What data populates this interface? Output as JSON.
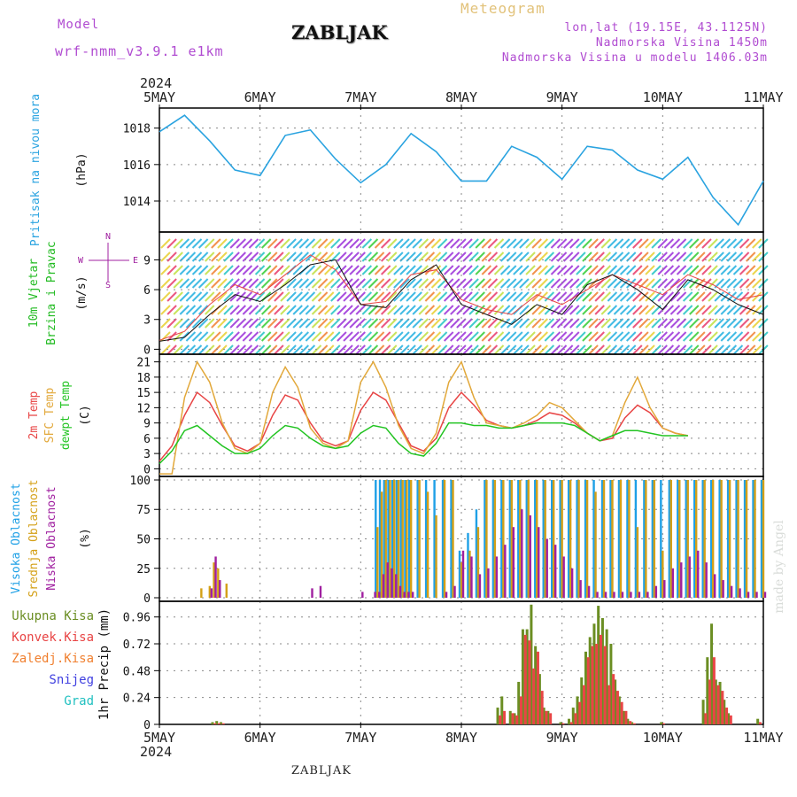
{
  "header": {
    "model_label": "Model",
    "model_name": "wrf-nmm_v3.9.1 e1km",
    "station": "ZABLJAK",
    "product": "Meteogram",
    "coords": "lon,lat (19.15E, 43.1125N)",
    "altitude": "Nadmorska Visina 1450m",
    "model_altitude": "Nadmorska Visina u modelu 1406.03m",
    "year": "2024",
    "footer_station": "ZABLJAK",
    "watermark": "made by Angel"
  },
  "colors": {
    "pressure": "#2aa3e0",
    "wind_label": "#22bb22",
    "temp2m": "#e84545",
    "sfc": "#e2a83a",
    "dewpt": "#22c422",
    "cloud_high": "#1ea0e6",
    "cloud_mid": "#d4a017",
    "cloud_low": "#a020a0",
    "precip_total": "#6b8e23",
    "precip_conv": "#e84545",
    "precip_strat": "#f08030",
    "snow": "#4040e0",
    "hail": "#20c0c0"
  },
  "chart_data": [
    {
      "type": "line",
      "name": "pressure",
      "ylabel": "Pritisak na nivou mora",
      "unit": "(hPa)",
      "ylim": [
        1012.3,
        1019.1
      ],
      "yticks": [
        1014,
        1016,
        1018
      ],
      "x_labels": [
        "5MAY",
        "6MAY",
        "7MAY",
        "8MAY",
        "9MAY",
        "10MAY",
        "11MAY"
      ],
      "x_hours": [
        0,
        6,
        12,
        18,
        24,
        30,
        36,
        42,
        48,
        54,
        60,
        66,
        72,
        78,
        84,
        90,
        96,
        102,
        108,
        114,
        120,
        126,
        132,
        138,
        144
      ],
      "values": [
        1017.8,
        1018.7,
        1017.3,
        1015.7,
        1015.4,
        1017.6,
        1017.9,
        1016.3,
        1015.0,
        1016.0,
        1017.7,
        1016.7,
        1015.1,
        1015.1,
        1017.0,
        1016.4,
        1015.2,
        1017.0,
        1016.8,
        1015.7,
        1015.2,
        1016.4,
        1014.2,
        1012.7,
        1015.1
      ],
      "grid": true
    },
    {
      "type": "line",
      "name": "wind",
      "ylabel": "10m Vjetar Brzina i Pravac",
      "unit": "(m/s)",
      "ylim": [
        -0.5,
        11.8
      ],
      "yticks": [
        0,
        3,
        6,
        9
      ],
      "compass": [
        "N",
        "W",
        "E",
        "S"
      ],
      "x_hours": [
        0,
        6,
        12,
        18,
        24,
        30,
        36,
        42,
        48,
        54,
        60,
        66,
        72,
        78,
        84,
        90,
        96,
        102,
        108,
        114,
        120,
        126,
        132,
        138,
        144
      ],
      "values": [
        0.8,
        1.2,
        3.5,
        5.5,
        4.8,
        6.5,
        8.5,
        9.0,
        4.5,
        4.2,
        7.0,
        8.5,
        4.5,
        3.5,
        2.5,
        4.5,
        3.5,
        6.5,
        7.5,
        6.0,
        4.0,
        7.0,
        6.0,
        4.5,
        3.5
      ],
      "gust": [
        0.9,
        1.8,
        4.5,
        6.5,
        5.5,
        7.5,
        9.5,
        8.0,
        4.5,
        4.8,
        7.5,
        8.0,
        5.0,
        4.0,
        3.5,
        5.5,
        4.5,
        6.0,
        7.5,
        6.5,
        5.5,
        7.5,
        6.5,
        5.0,
        5.5
      ],
      "grid": true
    },
    {
      "type": "line",
      "name": "temperature",
      "ylabel": [
        "2m Temp",
        "SFC Temp",
        "dewpt Temp"
      ],
      "unit": "(C)",
      "ylim": [
        -1.5,
        22.5
      ],
      "yticks": [
        0,
        3,
        6,
        9,
        12,
        15,
        18,
        21
      ],
      "x_hours": [
        0,
        3,
        6,
        9,
        12,
        15,
        18,
        21,
        24,
        27,
        30,
        33,
        36,
        39,
        42,
        45,
        48,
        51,
        54,
        57,
        60,
        63,
        66,
        69,
        72,
        75,
        78,
        81,
        84,
        87,
        90,
        93,
        96,
        99,
        102,
        105,
        108,
        111,
        114,
        117,
        120,
        123,
        126,
        129,
        132,
        135,
        138,
        141,
        144
      ],
      "series": [
        {
          "name": "2m Temp",
          "values": [
            1.5,
            4.5,
            10.5,
            15.0,
            13.0,
            8.5,
            4.5,
            3.5,
            5.0,
            10.5,
            14.5,
            13.5,
            9.0,
            5.5,
            4.5,
            5.5,
            11.5,
            15.0,
            13.5,
            9.0,
            4.5,
            3.5,
            6.0,
            12.0,
            15.0,
            12.5,
            9.5,
            8.5,
            8.0,
            8.5,
            9.5,
            11.0,
            10.5,
            9.0,
            7.0,
            5.5,
            6.0,
            10.0,
            12.5,
            11.0,
            8.0,
            7.0,
            6.5
          ]
        },
        {
          "name": "SFC Temp",
          "values": [
            -1.0,
            -1.0,
            14.0,
            21.0,
            17.0,
            9.0,
            4.0,
            3.0,
            5.0,
            15.0,
            20.0,
            16.0,
            8.0,
            5.0,
            4.0,
            5.5,
            17.0,
            21.0,
            16.0,
            8.5,
            4.0,
            3.0,
            7.0,
            17.0,
            21.0,
            14.0,
            9.0,
            8.5,
            8.0,
            9.0,
            10.5,
            13.0,
            12.0,
            9.5,
            7.0,
            5.5,
            6.5,
            13.0,
            18.0,
            12.0,
            8.0,
            7.0,
            6.5
          ]
        },
        {
          "name": "dewpt Temp",
          "values": [
            1.0,
            3.5,
            7.5,
            8.5,
            6.5,
            4.5,
            3.0,
            3.0,
            4.0,
            6.5,
            8.5,
            8.0,
            6.0,
            4.5,
            4.0,
            4.5,
            7.0,
            8.5,
            8.0,
            5.0,
            3.0,
            2.5,
            5.0,
            9.0,
            9.0,
            8.5,
            8.5,
            8.0,
            8.0,
            8.5,
            9.0,
            9.0,
            9.0,
            8.5,
            7.0,
            5.5,
            6.5,
            7.5,
            7.5,
            7.0,
            6.5,
            6.5,
            6.5
          ]
        }
      ],
      "grid": true
    },
    {
      "type": "bar",
      "name": "clouds",
      "ylabel": [
        "Visoka Oblacnost",
        "Srednja Oblacnost",
        "Niska Oblacnost"
      ],
      "unit": "(%)",
      "ylim": [
        -3,
        103
      ],
      "yticks": [
        0,
        25,
        50,
        75,
        100
      ],
      "x_hours": [
        0,
        6,
        10,
        12,
        13,
        14,
        16,
        18,
        24,
        36,
        38,
        48,
        51,
        52,
        53,
        54,
        55,
        56,
        57,
        58,
        59,
        60,
        62,
        64,
        66,
        68,
        70,
        72,
        74,
        76,
        78,
        80,
        82,
        84,
        86,
        88,
        90,
        92,
        94,
        96,
        98,
        100,
        102,
        104,
        106,
        108,
        110,
        112,
        114,
        116,
        118,
        120,
        122,
        124,
        126,
        128,
        130,
        132,
        134,
        136,
        138,
        140,
        142,
        144
      ],
      "series": [
        {
          "name": "Visoka Oblacnost",
          "values": [
            0,
            0,
            0,
            0,
            0,
            0,
            0,
            0,
            0,
            0,
            0,
            0,
            0,
            100,
            100,
            100,
            100,
            100,
            100,
            100,
            100,
            100,
            100,
            100,
            100,
            100,
            100,
            40,
            55,
            75,
            100,
            100,
            100,
            100,
            100,
            100,
            100,
            100,
            100,
            100,
            100,
            100,
            100,
            100,
            100,
            100,
            100,
            100,
            100,
            100,
            100,
            100,
            100,
            100,
            100,
            100,
            100,
            100,
            100,
            100,
            100,
            100,
            100,
            100
          ]
        },
        {
          "name": "Srednja Oblacnost",
          "values": [
            0,
            0,
            8,
            10,
            30,
            25,
            12,
            0,
            0,
            0,
            0,
            0,
            0,
            60,
            90,
            100,
            100,
            100,
            100,
            100,
            100,
            100,
            100,
            90,
            70,
            100,
            100,
            30,
            40,
            60,
            100,
            100,
            100,
            100,
            100,
            100,
            100,
            100,
            100,
            100,
            100,
            100,
            100,
            90,
            100,
            100,
            100,
            100,
            60,
            100,
            100,
            40,
            100,
            100,
            100,
            100,
            100,
            100,
            100,
            100,
            100,
            100,
            100,
            100
          ]
        },
        {
          "name": "Niska Oblacnost",
          "values": [
            0,
            0,
            0,
            8,
            35,
            15,
            0,
            0,
            0,
            8,
            10,
            5,
            5,
            5,
            20,
            30,
            25,
            20,
            10,
            5,
            5,
            5,
            0,
            0,
            0,
            5,
            10,
            40,
            35,
            20,
            25,
            35,
            45,
            60,
            75,
            70,
            60,
            50,
            45,
            35,
            25,
            15,
            10,
            5,
            5,
            5,
            5,
            5,
            5,
            5,
            10,
            15,
            25,
            30,
            35,
            40,
            30,
            20,
            15,
            10,
            8,
            5,
            5,
            5
          ]
        }
      ],
      "grid": true
    },
    {
      "type": "bar",
      "name": "precipitation",
      "ylabel": "1hr Precip",
      "unit": "(mm)",
      "ylim": [
        0,
        1.1
      ],
      "yticks": [
        0,
        0.24,
        0.48,
        0.72,
        0.96
      ],
      "legend": [
        "Ukupna Kisa",
        "Konvek.Kisa",
        "Zaledj.Kisa",
        "Snijeg",
        "Grad"
      ],
      "x_hours": [
        13,
        14,
        15,
        81,
        82,
        84,
        85,
        86,
        87,
        88,
        89,
        90,
        91,
        92,
        93,
        96,
        98,
        99,
        100,
        101,
        102,
        103,
        104,
        105,
        106,
        107,
        108,
        109,
        110,
        111,
        112,
        113,
        120,
        130,
        131,
        132,
        133,
        134,
        135,
        136,
        143
      ],
      "series": [
        {
          "name": "Ukupna Kisa",
          "values": [
            0.02,
            0.03,
            0.02,
            0.15,
            0.25,
            0.12,
            0.1,
            0.38,
            0.85,
            0.85,
            1.07,
            0.7,
            0.45,
            0.15,
            0.12,
            0.02,
            0.05,
            0.15,
            0.25,
            0.42,
            0.65,
            0.78,
            0.9,
            1.06,
            0.95,
            0.85,
            0.72,
            0.4,
            0.25,
            0.12,
            0.05,
            0.02,
            0.02,
            0.22,
            0.6,
            0.9,
            0.4,
            0.38,
            0.22,
            0.1,
            0.05
          ]
        },
        {
          "name": "Konvek.Kisa",
          "values": [
            0.01,
            0.01,
            0.01,
            0.08,
            0.12,
            0.1,
            0.08,
            0.25,
            0.8,
            0.75,
            0.5,
            0.65,
            0.3,
            0.12,
            0.1,
            0.01,
            0.02,
            0.1,
            0.2,
            0.35,
            0.6,
            0.7,
            0.72,
            0.8,
            0.7,
            0.35,
            0.45,
            0.3,
            0.2,
            0.12,
            0.03,
            0.01,
            0.01,
            0.1,
            0.4,
            0.6,
            0.35,
            0.3,
            0.15,
            0.08,
            0.02
          ]
        }
      ],
      "grid": true
    }
  ]
}
